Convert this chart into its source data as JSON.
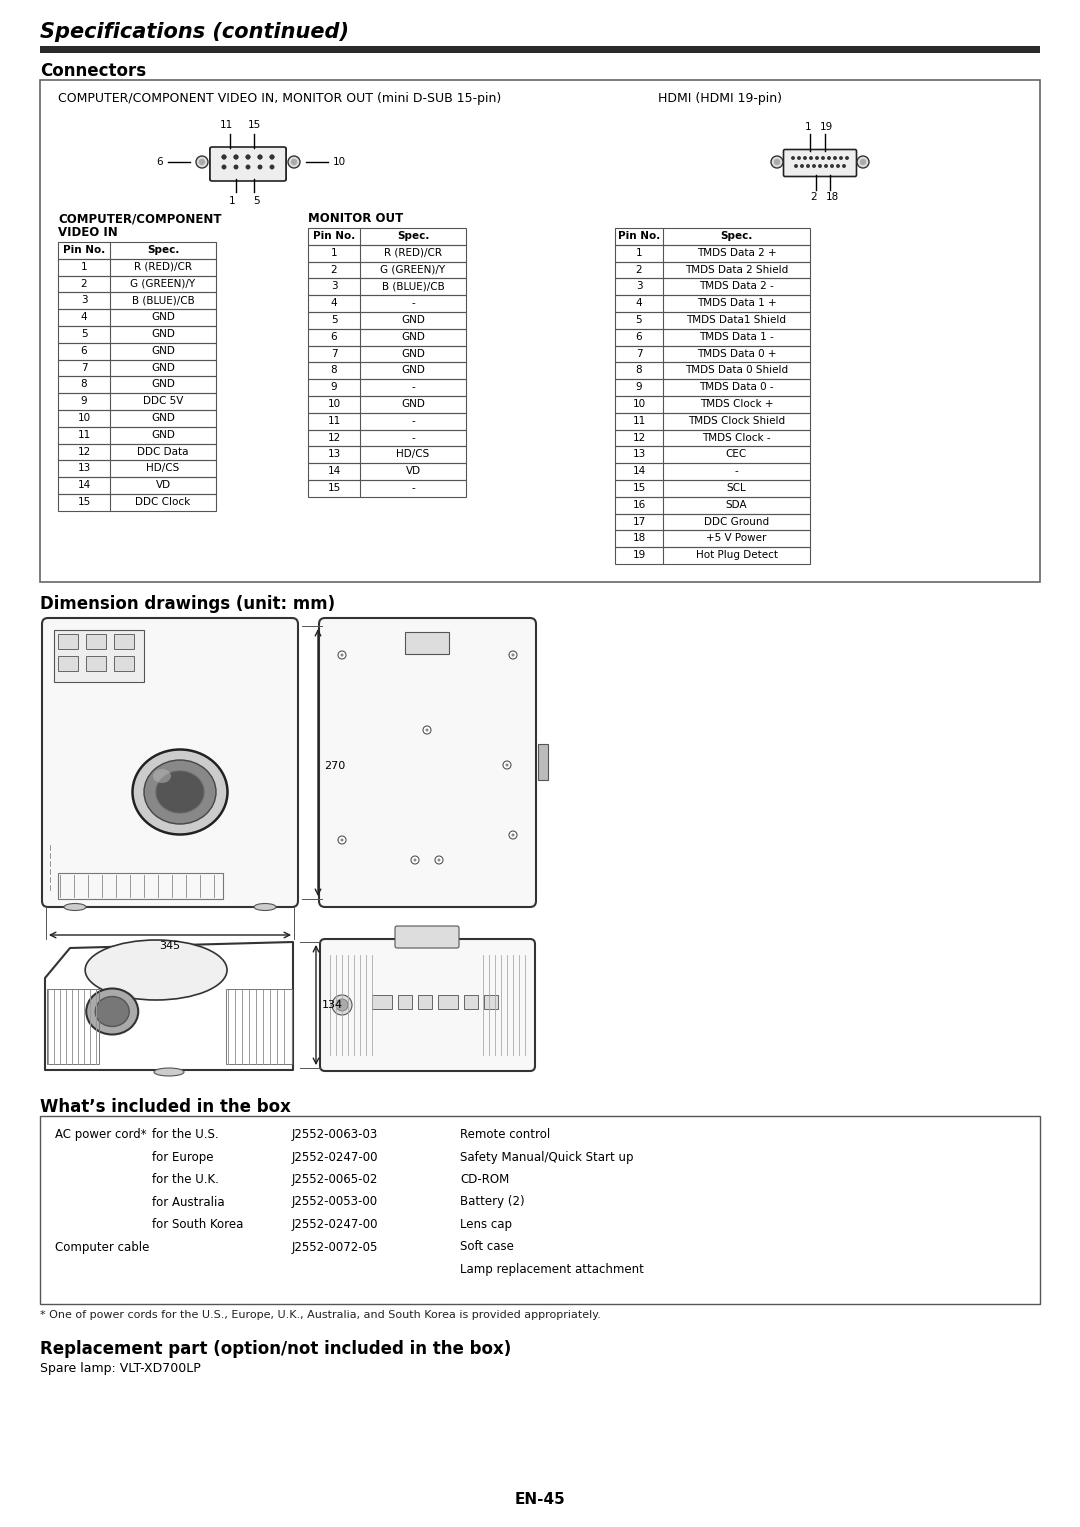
{
  "title": "Specifications (continued)",
  "section1": "Connectors",
  "section2": "Dimension drawings (unit: mm)",
  "section3": "What’s included in the box",
  "section4": "Replacement part (option/not included in the box)",
  "spare_lamp": "Spare lamp: VLT-XD700LP",
  "footer_note": "* One of power cords for the U.S., Europe, U.K., Australia, and South Korea is provided appropriately.",
  "page_number": "EN-45",
  "connector_header_left": "COMPUTER/COMPONENT VIDEO IN, MONITOR OUT (mini D-SUB 15-pin)",
  "connector_header_right": "HDMI (HDMI 19-pin)",
  "table1_title_line1": "COMPUTER/COMPONENT",
  "table1_title_line2": "VIDEO IN",
  "table2_title": "MONITOR OUT",
  "table1_data": [
    [
      "Pin No.",
      "Spec."
    ],
    [
      "1",
      "R (RED)/CR"
    ],
    [
      "2",
      "G (GREEN)/Y"
    ],
    [
      "3",
      "B (BLUE)/CB"
    ],
    [
      "4",
      "GND"
    ],
    [
      "5",
      "GND"
    ],
    [
      "6",
      "GND"
    ],
    [
      "7",
      "GND"
    ],
    [
      "8",
      "GND"
    ],
    [
      "9",
      "DDC 5V"
    ],
    [
      "10",
      "GND"
    ],
    [
      "11",
      "GND"
    ],
    [
      "12",
      "DDC Data"
    ],
    [
      "13",
      "HD/CS"
    ],
    [
      "14",
      "VD"
    ],
    [
      "15",
      "DDC Clock"
    ]
  ],
  "table2_data": [
    [
      "Pin No.",
      "Spec."
    ],
    [
      "1",
      "R (RED)/CR"
    ],
    [
      "2",
      "G (GREEN)/Y"
    ],
    [
      "3",
      "B (BLUE)/CB"
    ],
    [
      "4",
      "-"
    ],
    [
      "5",
      "GND"
    ],
    [
      "6",
      "GND"
    ],
    [
      "7",
      "GND"
    ],
    [
      "8",
      "GND"
    ],
    [
      "9",
      "-"
    ],
    [
      "10",
      "GND"
    ],
    [
      "11",
      "-"
    ],
    [
      "12",
      "-"
    ],
    [
      "13",
      "HD/CS"
    ],
    [
      "14",
      "VD"
    ],
    [
      "15",
      "-"
    ]
  ],
  "table3_data": [
    [
      "Pin No.",
      "Spec."
    ],
    [
      "1",
      "TMDS Data 2 +"
    ],
    [
      "2",
      "TMDS Data 2 Shield"
    ],
    [
      "3",
      "TMDS Data 2 -"
    ],
    [
      "4",
      "TMDS Data 1 +"
    ],
    [
      "5",
      "TMDS Data1 Shield"
    ],
    [
      "6",
      "TMDS Data 1 -"
    ],
    [
      "7",
      "TMDS Data 0 +"
    ],
    [
      "8",
      "TMDS Data 0 Shield"
    ],
    [
      "9",
      "TMDS Data 0 -"
    ],
    [
      "10",
      "TMDS Clock +"
    ],
    [
      "11",
      "TMDS Clock Shield"
    ],
    [
      "12",
      "TMDS Clock -"
    ],
    [
      "13",
      "CEC"
    ],
    [
      "14",
      "-"
    ],
    [
      "15",
      "SCL"
    ],
    [
      "16",
      "SDA"
    ],
    [
      "17",
      "DDC Ground"
    ],
    [
      "18",
      "+5 V Power"
    ],
    [
      "19",
      "Hot Plug Detect"
    ]
  ],
  "dim1": "270",
  "dim2": "345",
  "dim3": "134",
  "bg_color": "#ffffff",
  "header_bar_color": "#2b2b2b",
  "box_col1_labels": [
    "AC power cord*",
    "",
    "",
    "",
    "",
    "",
    "Computer cable"
  ],
  "box_col1_indent": [
    "",
    "for the U.S.",
    "for Europe",
    "for the U.K.",
    "for Australia",
    "for South Korea",
    ""
  ],
  "box_col2_parts": [
    "J2552-0063-03",
    "J2552-0247-00",
    "J2552-0065-02",
    "J2552-0053-00",
    "J2552-0247-00",
    "J2552-0072-05"
  ],
  "box_col3_items": [
    "Remote control",
    "Safety Manual/Quick Start up",
    "CD-ROM",
    "Battery (2)",
    "Lens cap",
    "Soft case",
    "Lamp replacement attachment"
  ]
}
